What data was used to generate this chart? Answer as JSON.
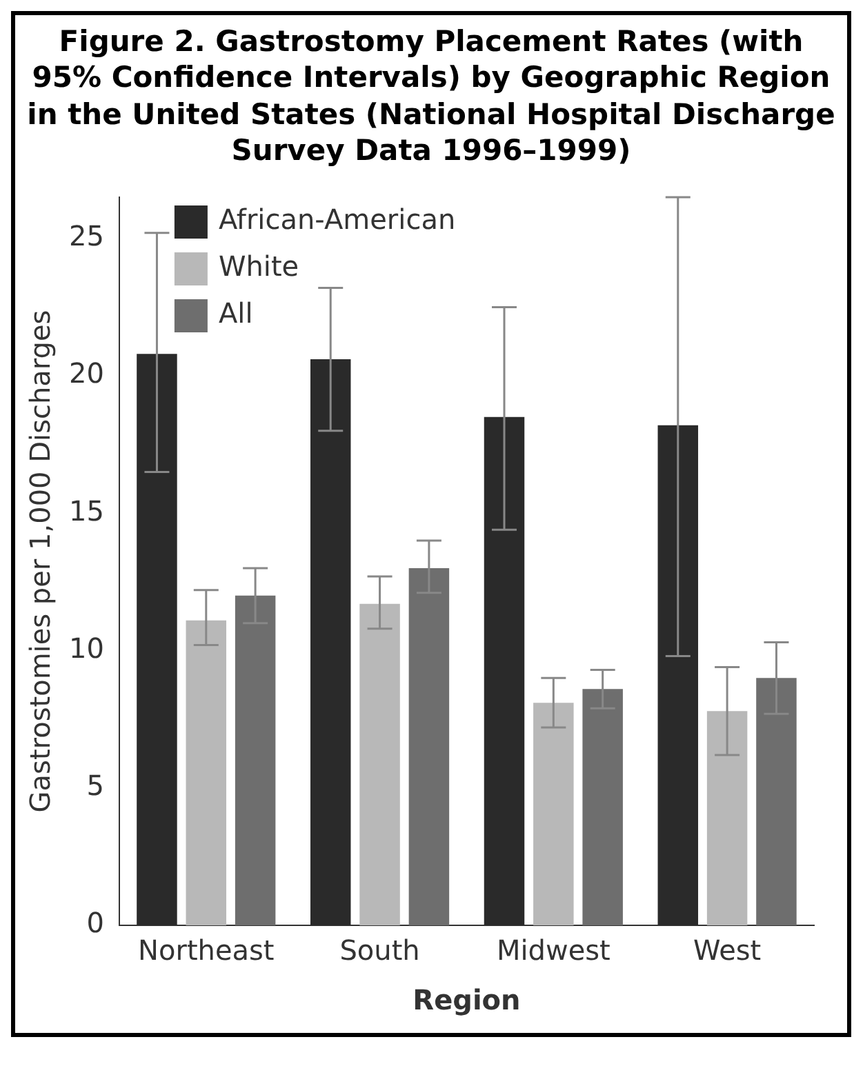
{
  "chart_data": {
    "type": "bar",
    "title": "Figure 2. Gastrostomy Placement Rates (with 95% Confidence Intervals) by Geographic Region in the United States (National Hospital Discharge Survey Data 1996–1999)",
    "xlabel": "Region",
    "ylabel": "Gastrostomies per 1,000 Discharges",
    "categories": [
      "Northeast",
      "South",
      "Midwest",
      "West"
    ],
    "series": [
      {
        "name": "African-American",
        "color": "#2a2a2a",
        "values": [
          20.8,
          20.6,
          18.5,
          18.2
        ],
        "errors": [
          [
            16.5,
            25.2
          ],
          [
            18.0,
            23.2
          ],
          [
            14.4,
            22.5
          ],
          [
            9.8,
            26.5
          ]
        ]
      },
      {
        "name": "White",
        "color": "#b8b8b8",
        "values": [
          11.1,
          11.7,
          8.1,
          7.8
        ],
        "errors": [
          [
            10.2,
            12.2
          ],
          [
            10.8,
            12.7
          ],
          [
            7.2,
            9.0
          ],
          [
            6.2,
            9.4
          ]
        ]
      },
      {
        "name": "All",
        "color": "#6e6e6e",
        "values": [
          12.0,
          13.0,
          8.6,
          9.0
        ],
        "errors": [
          [
            11.0,
            13.0
          ],
          [
            12.1,
            14.0
          ],
          [
            7.9,
            9.3
          ],
          [
            7.7,
            10.3
          ]
        ]
      }
    ],
    "ylim": [
      0,
      26.5
    ],
    "yticks": [
      0,
      5,
      10,
      15,
      20,
      25
    ],
    "grid": false,
    "legend": "top left"
  }
}
